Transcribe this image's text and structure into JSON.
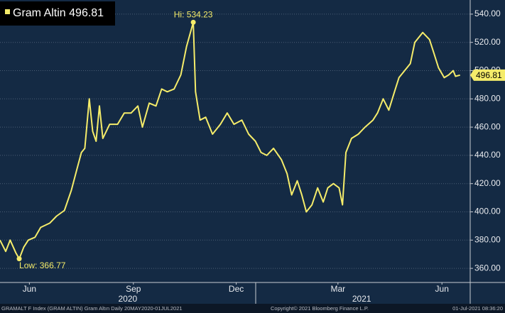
{
  "chart_data": {
    "type": "line",
    "series": [
      {
        "name": "Gram Altin",
        "color": "#f5ec6a",
        "x": [
          0,
          5,
          9,
          14,
          17,
          21,
          25,
          31,
          36,
          44,
          50,
          57,
          63,
          68,
          72,
          75,
          79,
          82,
          85,
          88,
          91,
          97,
          104,
          110,
          116,
          122,
          126,
          132,
          138,
          143,
          148,
          154,
          160,
          165,
          171,
          173,
          177,
          182,
          188,
          195,
          201,
          207,
          214,
          220,
          226,
          231,
          236,
          242,
          249,
          254,
          258,
          263,
          267,
          271,
          276,
          281,
          286,
          290,
          295,
          300,
          303,
          306,
          311,
          317,
          323,
          330,
          334,
          339,
          344,
          349,
          353,
          358,
          363,
          367,
          374,
          380,
          384,
          388,
          393,
          397,
          401,
          403,
          407
        ],
        "values": [
          380,
          372,
          380,
          371,
          366.77,
          375,
          380,
          382,
          389,
          392,
          397,
          401,
          415,
          430,
          442,
          445,
          480,
          457,
          450,
          475,
          452,
          462,
          462,
          470,
          470,
          475,
          460,
          477,
          475,
          487,
          485,
          487,
          497,
          517,
          534.23,
          485,
          465,
          467,
          455,
          462,
          470,
          462,
          465,
          455,
          450,
          442,
          440,
          445,
          437,
          427,
          412,
          422,
          412,
          400,
          405,
          417,
          407,
          417,
          420,
          417,
          405,
          442,
          452,
          455,
          460,
          465,
          470,
          480,
          472,
          485,
          495,
          500,
          505,
          520,
          527,
          522,
          512,
          502,
          495,
          497,
          500,
          496,
          496.81
        ]
      }
    ],
    "xlim": [
      0,
      416
    ],
    "ylim": [
      350,
      550
    ],
    "xticks": [
      {
        "value": 26,
        "label": "Jun"
      },
      {
        "value": 118,
        "label": "Sep"
      },
      {
        "value": 209,
        "label": "Dec"
      },
      {
        "value": 299,
        "label": "Mar"
      },
      {
        "value": 391,
        "label": "Jun"
      }
    ],
    "year_labels": [
      {
        "value": 113,
        "label": "2020"
      },
      {
        "value": 320,
        "label": "2021"
      }
    ],
    "yticks": [
      {
        "value": 360,
        "label": "360.00"
      },
      {
        "value": 380,
        "label": "380.00"
      },
      {
        "value": 400,
        "label": "400.00"
      },
      {
        "value": 420,
        "label": "420.00"
      },
      {
        "value": 440,
        "label": "440.00"
      },
      {
        "value": 460,
        "label": "460.00"
      },
      {
        "value": 480,
        "label": "480.00"
      },
      {
        "value": 500,
        "label": "500.00"
      },
      {
        "value": 520,
        "label": "520.00"
      },
      {
        "value": 540,
        "label": "540.00"
      }
    ],
    "grid": true,
    "annotations": {
      "high": "Hi: 534.23",
      "low": "Low: 366.77"
    },
    "footer": {
      "left": "GRAMALT F Index (GRAM ALTIN) Gram Altın  Daily 20MAY2020-01JUL2021",
      "center": "Copyright© 2021 Bloomberg Finance L.P.",
      "right": "01-Jul-2021 08:36:20"
    }
  }
}
